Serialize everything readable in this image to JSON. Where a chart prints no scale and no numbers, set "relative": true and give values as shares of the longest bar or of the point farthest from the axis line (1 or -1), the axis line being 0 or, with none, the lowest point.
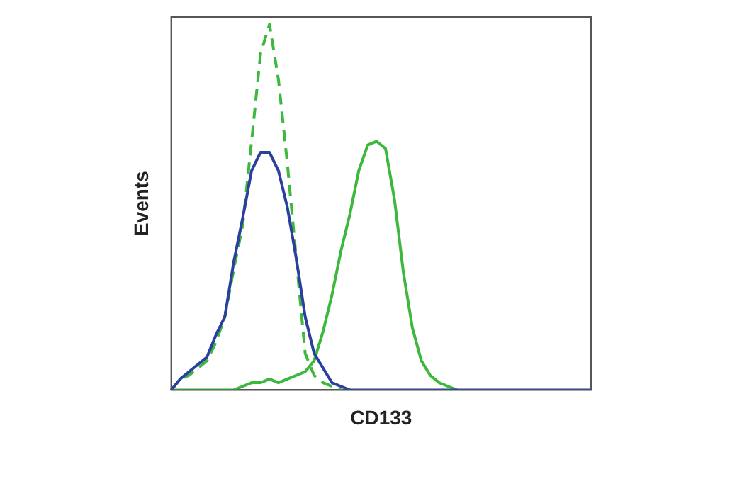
{
  "chart_data": {
    "type": "line",
    "relative": true,
    "xlabel": "CD133",
    "ylabel": "Events",
    "grid": false,
    "legend": false,
    "marker": "none",
    "categories": [
      null,
      null,
      null,
      null,
      null,
      null,
      null,
      null,
      null,
      null,
      null,
      null,
      null,
      null,
      null,
      null,
      null,
      null,
      null,
      null,
      null,
      null,
      null,
      null,
      null,
      null,
      null,
      null,
      null,
      null,
      null,
      null,
      null,
      null,
      null,
      null,
      null,
      null,
      null,
      null,
      null,
      null,
      null,
      null,
      null,
      null,
      null,
      null
    ],
    "series": [
      {
        "color": "#2b3f9e",
        "line_style": "solid",
        "values": [
          0,
          0.03,
          0.05,
          0.07,
          0.09,
          0.15,
          0.2,
          0.35,
          0.47,
          0.6,
          0.65,
          0.65,
          0.6,
          0.5,
          0.36,
          0.2,
          0.1,
          0.06,
          0.02,
          0.01,
          0,
          0,
          0,
          0,
          0,
          0,
          0,
          0,
          0,
          0,
          0,
          0,
          0,
          0,
          0,
          0,
          0,
          0,
          0,
          0,
          0,
          0,
          0,
          0,
          0,
          0,
          0,
          0
        ]
      },
      {
        "color": "#3cb83c",
        "line_style": "dashed",
        "values": [
          0,
          0.03,
          0.04,
          0.06,
          0.08,
          0.13,
          0.2,
          0.33,
          0.45,
          0.68,
          0.92,
          1,
          0.85,
          0.62,
          0.36,
          0.1,
          0.04,
          0.02,
          0.01,
          0,
          null,
          null,
          null,
          null,
          null,
          null,
          null,
          null,
          null,
          null,
          null,
          null,
          null,
          null,
          null,
          null,
          null,
          null,
          null,
          null,
          null,
          null,
          null,
          null,
          null,
          null,
          null,
          null
        ]
      },
      {
        "color": "#3cb83c",
        "line_style": "solid",
        "values": [
          0,
          0,
          0,
          0,
          0,
          0,
          0,
          0,
          0.01,
          0.02,
          0.02,
          0.03,
          0.02,
          0.03,
          0.04,
          0.05,
          0.08,
          0.16,
          0.26,
          0.38,
          0.48,
          0.6,
          0.67,
          0.68,
          0.66,
          0.52,
          0.32,
          0.17,
          0.08,
          0.04,
          0.02,
          0.01,
          0,
          null,
          null,
          null,
          null,
          null,
          null,
          null,
          null,
          null,
          null,
          null,
          null,
          null,
          null,
          null
        ]
      }
    ]
  }
}
